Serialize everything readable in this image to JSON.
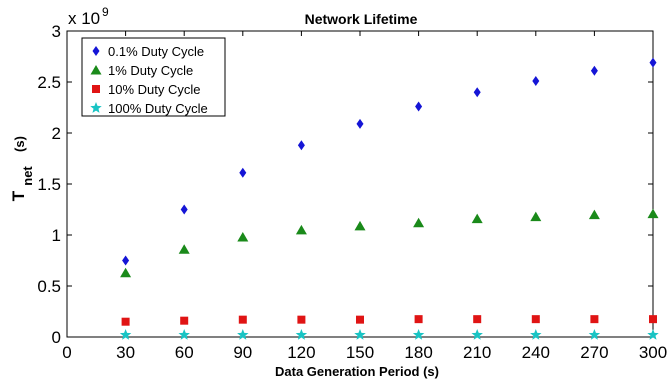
{
  "chart_data": {
    "type": "scatter",
    "title": "Network Lifetime",
    "xlabel": "Data Generation Period (s)",
    "ylabel_main": "T",
    "ylabel_sub": "net",
    "ylabel_unit": "(s)",
    "y_scale_prefix": "x 10",
    "y_scale_exponent": "9",
    "xlim": [
      0,
      300
    ],
    "ylim": [
      0,
      3
    ],
    "xticks": [
      0,
      30,
      60,
      90,
      120,
      150,
      180,
      210,
      240,
      270,
      300
    ],
    "yticks": [
      0,
      0.5,
      1,
      1.5,
      2,
      2.5,
      3
    ],
    "ytick_labels": [
      "0",
      "0.5",
      "1",
      "1.5",
      "2",
      "2.5",
      "3"
    ],
    "legend_position": "top-left",
    "x": [
      30,
      60,
      90,
      120,
      150,
      180,
      210,
      240,
      270,
      300
    ],
    "series": [
      {
        "name": "0.1% Duty Cycle",
        "marker": "diamond",
        "color": "#1515d6",
        "values": [
          0.75,
          1.25,
          1.61,
          1.88,
          2.09,
          2.26,
          2.4,
          2.51,
          2.61,
          2.69
        ]
      },
      {
        "name": "1% Duty Cycle",
        "marker": "triangle",
        "color": "#1a8a1a",
        "values": [
          0.63,
          0.86,
          0.98,
          1.05,
          1.09,
          1.12,
          1.16,
          1.18,
          1.2,
          1.21
        ]
      },
      {
        "name": "10% Duty Cycle",
        "marker": "square",
        "color": "#e01414",
        "values": [
          0.15,
          0.16,
          0.17,
          0.17,
          0.17,
          0.175,
          0.175,
          0.175,
          0.175,
          0.175
        ]
      },
      {
        "name": "100% Duty Cycle",
        "marker": "star",
        "color": "#19c4c4",
        "values": [
          0.02,
          0.02,
          0.02,
          0.02,
          0.02,
          0.02,
          0.02,
          0.02,
          0.02,
          0.02
        ]
      }
    ]
  }
}
